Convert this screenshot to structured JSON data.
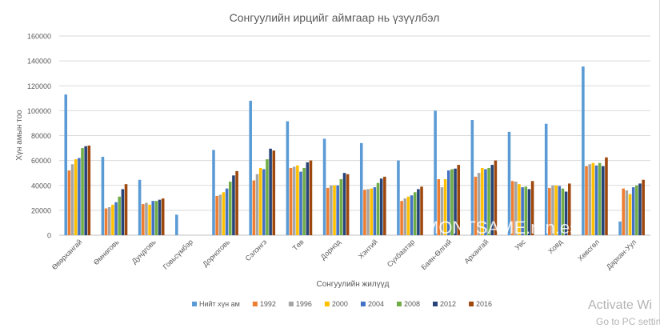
{
  "chart_data": {
    "type": "bar",
    "title": "Сонгуулийн ирцийг аймгаар нь үзүүлбэл",
    "xlabel": "Сонгуулийн жилүүд",
    "ylabel": "Хүн амын тоо",
    "ylim": [
      0,
      160000
    ],
    "yticks": [
      0,
      20000,
      40000,
      60000,
      80000,
      100000,
      120000,
      140000,
      160000
    ],
    "grid": true,
    "legend_position": "bottom",
    "categories": [
      "Өвөрхангай",
      "Өмнөговь",
      "Дундговь",
      "Говьсүмбэр",
      "Дорноговь",
      "Сэлэнгэ",
      "Төв",
      "Дорнод",
      "Хэнтий",
      "Сүхбаатар",
      "Баян-Өлгий",
      "Архангай",
      "Увс",
      "Ховд",
      "Хөвсгөл",
      "Дархан-Уул"
    ],
    "series": [
      {
        "name": "Нийт хүн ам",
        "color": "#5b9bd5",
        "values": [
          113000,
          63000,
          44500,
          16500,
          68500,
          108000,
          91500,
          77500,
          74000,
          60000,
          100000,
          92500,
          83000,
          89500,
          135500,
          11000
        ]
      },
      {
        "name": "1992",
        "color": "#ed7d31",
        "values": [
          52000,
          21500,
          25000,
          null,
          31500,
          44000,
          54000,
          38000,
          36500,
          27500,
          45000,
          47000,
          43500,
          38000,
          55500,
          37500
        ]
      },
      {
        "name": "1996",
        "color": "#a5a5a5",
        "values": [
          57000,
          22500,
          26000,
          null,
          32500,
          49000,
          55000,
          40000,
          37000,
          29500,
          38500,
          50000,
          43000,
          40000,
          57000,
          36000
        ]
      },
      {
        "name": "2000",
        "color": "#ffc000",
        "values": [
          61000,
          24500,
          24500,
          null,
          34500,
          54000,
          56000,
          40000,
          37500,
          31000,
          45000,
          54000,
          41000,
          40000,
          58000,
          33000
        ]
      },
      {
        "name": "2004",
        "color": "#4472c4",
        "values": [
          62000,
          26500,
          27500,
          null,
          37500,
          53000,
          51000,
          40000,
          38500,
          32000,
          52000,
          53000,
          38500,
          39500,
          56000,
          38500
        ]
      },
      {
        "name": "2008",
        "color": "#70ad47",
        "values": [
          70000,
          31000,
          27500,
          null,
          43000,
          61000,
          54000,
          45000,
          42000,
          34500,
          53000,
          54000,
          39000,
          37500,
          58000,
          40000
        ]
      },
      {
        "name": "2012",
        "color": "#264478",
        "values": [
          71500,
          37000,
          28500,
          null,
          48000,
          69500,
          58500,
          50000,
          45500,
          37000,
          53500,
          56500,
          37000,
          35000,
          55500,
          41500
        ]
      },
      {
        "name": "2016",
        "color": "#9e480e",
        "values": [
          72000,
          41000,
          29500,
          null,
          51500,
          68000,
          60000,
          49000,
          47000,
          39000,
          56500,
          60000,
          43500,
          41500,
          62500,
          44500
        ]
      }
    ]
  },
  "watermark": {
    "center_text": "MONTSAME.mn.es",
    "activate_line1": "Activate Wi",
    "activate_line2": "Go to PC setting"
  }
}
